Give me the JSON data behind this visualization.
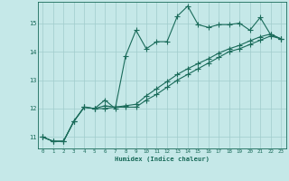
{
  "xlabel": "Humidex (Indice chaleur)",
  "x_min": -0.5,
  "x_max": 23.5,
  "y_min": 10.6,
  "y_max": 15.75,
  "yticks": [
    11,
    12,
    13,
    14,
    15
  ],
  "xticks": [
    0,
    1,
    2,
    3,
    4,
    5,
    6,
    7,
    8,
    9,
    10,
    11,
    12,
    13,
    14,
    15,
    16,
    17,
    18,
    19,
    20,
    21,
    22,
    23
  ],
  "background_color": "#c5e8e8",
  "grid_color": "#a0cccc",
  "line_color": "#1a6b5a",
  "line1_x": [
    0,
    1,
    2,
    3,
    4,
    5,
    6,
    7,
    8,
    9,
    10,
    11,
    12,
    13,
    14,
    15,
    16,
    17,
    18,
    19,
    20,
    21,
    22,
    23
  ],
  "line1_y": [
    11.0,
    10.85,
    10.85,
    11.55,
    12.05,
    12.0,
    12.3,
    12.0,
    13.85,
    14.75,
    14.1,
    14.35,
    14.35,
    15.25,
    15.6,
    14.95,
    14.85,
    14.95,
    14.95,
    15.0,
    14.75,
    15.2,
    14.6,
    14.45
  ],
  "line2_x": [
    0,
    1,
    2,
    3,
    4,
    5,
    6,
    7,
    8,
    9,
    10,
    11,
    12,
    13,
    14,
    15,
    16,
    17,
    18,
    19,
    20,
    21,
    22,
    23
  ],
  "line2_y": [
    11.0,
    10.85,
    10.85,
    11.55,
    12.05,
    12.0,
    12.0,
    12.05,
    12.05,
    12.05,
    12.3,
    12.5,
    12.75,
    13.0,
    13.2,
    13.4,
    13.6,
    13.8,
    14.0,
    14.1,
    14.25,
    14.4,
    14.55,
    14.45
  ],
  "line3_x": [
    0,
    1,
    2,
    3,
    4,
    5,
    6,
    7,
    8,
    9,
    10,
    11,
    12,
    13,
    14,
    15,
    16,
    17,
    18,
    19,
    20,
    21,
    22,
    23
  ],
  "line3_y": [
    11.0,
    10.85,
    10.85,
    11.55,
    12.05,
    12.0,
    12.1,
    12.05,
    12.1,
    12.15,
    12.45,
    12.7,
    12.95,
    13.2,
    13.4,
    13.58,
    13.75,
    13.95,
    14.1,
    14.22,
    14.38,
    14.52,
    14.62,
    14.45
  ]
}
